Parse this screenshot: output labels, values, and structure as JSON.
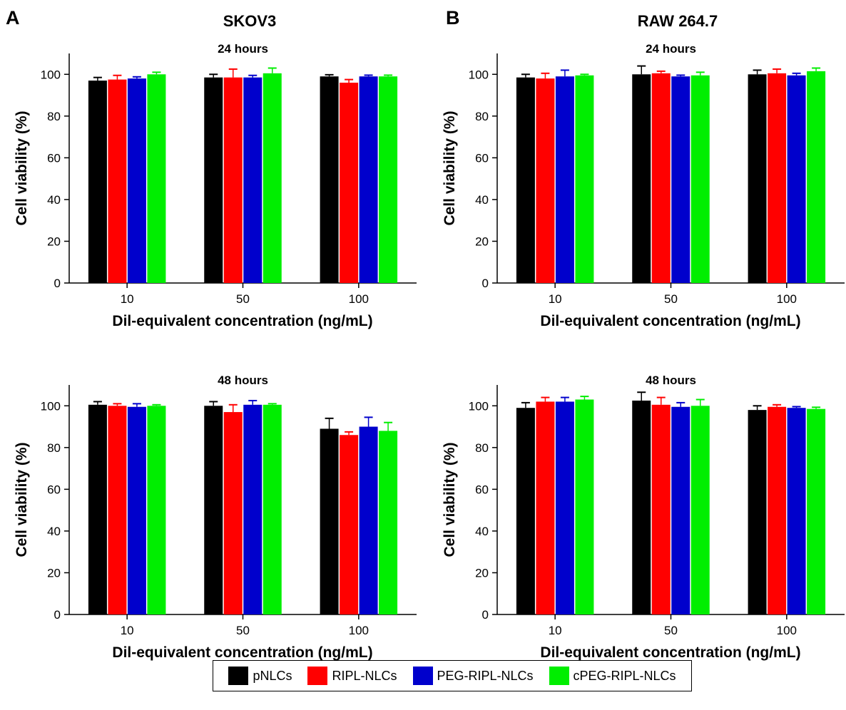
{
  "figure": {
    "panels": [
      {
        "letter": "A",
        "title": "SKOV3"
      },
      {
        "letter": "B",
        "title": "RAW 264.7"
      }
    ]
  },
  "legend": [
    {
      "name": "pNLCs",
      "color": "#000000"
    },
    {
      "name": "RIPL-NLCs",
      "color": "#ff0000"
    },
    {
      "name": "PEG-RIPL-NLCs",
      "color": "#0000cc"
    },
    {
      "name": "cPEG-RIPL-NLCs",
      "color": "#00ee00"
    }
  ],
  "chart_data": [
    {
      "type": "bar",
      "panel": "A",
      "title": "24 hours",
      "xlabel": "Dil-equivalent concentration (ng/mL)",
      "ylabel": "Cell viability (%)",
      "categories": [
        "10",
        "50",
        "100"
      ],
      "ylim": [
        0,
        110
      ],
      "yticks": [
        "0",
        "20",
        "40",
        "60",
        "80",
        "100"
      ],
      "series": [
        {
          "name": "pNLCs",
          "color": "#000000",
          "values": [
            97,
            98.5,
            99
          ],
          "errors": [
            1.5,
            1.5,
            0.8
          ]
        },
        {
          "name": "RIPL-NLCs",
          "color": "#ff0000",
          "values": [
            97.5,
            98.5,
            96
          ],
          "errors": [
            2,
            4,
            1.5
          ]
        },
        {
          "name": "PEG-RIPL-NLCs",
          "color": "#0000cc",
          "values": [
            98,
            98.5,
            99
          ],
          "errors": [
            0.8,
            1,
            0.6
          ]
        },
        {
          "name": "cPEG-RIPL-NLCs",
          "color": "#00ee00",
          "values": [
            100,
            100.5,
            99
          ],
          "errors": [
            1,
            2.5,
            0.6
          ]
        }
      ]
    },
    {
      "type": "bar",
      "panel": "B",
      "title": "24 hours",
      "xlabel": "Dil-equivalent concentration (ng/mL)",
      "ylabel": "Cell viability (%)",
      "categories": [
        "10",
        "50",
        "100"
      ],
      "ylim": [
        0,
        110
      ],
      "yticks": [
        "0",
        "20",
        "40",
        "60",
        "80",
        "100"
      ],
      "series": [
        {
          "name": "pNLCs",
          "color": "#000000",
          "values": [
            98.5,
            100,
            100
          ],
          "errors": [
            1.5,
            4,
            2
          ]
        },
        {
          "name": "RIPL-NLCs",
          "color": "#ff0000",
          "values": [
            98,
            100.5,
            100.5
          ],
          "errors": [
            2.5,
            1,
            2
          ]
        },
        {
          "name": "PEG-RIPL-NLCs",
          "color": "#0000cc",
          "values": [
            99,
            99,
            99.5
          ],
          "errors": [
            3,
            0.6,
            1
          ]
        },
        {
          "name": "cPEG-RIPL-NLCs",
          "color": "#00ee00",
          "values": [
            99.5,
            99.5,
            101.5
          ],
          "errors": [
            0.5,
            1.5,
            1.5
          ]
        }
      ]
    },
    {
      "type": "bar",
      "panel": "A",
      "title": "48 hours",
      "xlabel": "Dil-equivalent concentration (ng/mL)",
      "ylabel": "Cell viability (%)",
      "categories": [
        "10",
        "50",
        "100"
      ],
      "ylim": [
        0,
        110
      ],
      "yticks": [
        "0",
        "20",
        "40",
        "60",
        "80",
        "100"
      ],
      "series": [
        {
          "name": "pNLCs",
          "color": "#000000",
          "values": [
            100.5,
            100,
            89
          ],
          "errors": [
            1.5,
            2,
            5
          ]
        },
        {
          "name": "RIPL-NLCs",
          "color": "#ff0000",
          "values": [
            100,
            97,
            86
          ],
          "errors": [
            1,
            3.5,
            1.5
          ]
        },
        {
          "name": "PEG-RIPL-NLCs",
          "color": "#0000cc",
          "values": [
            99.5,
            100.5,
            90
          ],
          "errors": [
            1.5,
            2,
            4.5
          ]
        },
        {
          "name": "cPEG-RIPL-NLCs",
          "color": "#00ee00",
          "values": [
            100,
            100.5,
            88
          ],
          "errors": [
            0.5,
            0.5,
            4
          ]
        }
      ]
    },
    {
      "type": "bar",
      "panel": "B",
      "title": "48 hours",
      "xlabel": "Dil-equivalent concentration (ng/mL)",
      "ylabel": "Cell viability (%)",
      "categories": [
        "10",
        "50",
        "100"
      ],
      "ylim": [
        0,
        110
      ],
      "yticks": [
        "0",
        "20",
        "40",
        "60",
        "80",
        "100"
      ],
      "series": [
        {
          "name": "pNLCs",
          "color": "#000000",
          "values": [
            99,
            102.5,
            98
          ],
          "errors": [
            2.5,
            4,
            2
          ]
        },
        {
          "name": "RIPL-NLCs",
          "color": "#ff0000",
          "values": [
            102,
            100.5,
            99.5
          ],
          "errors": [
            2,
            3.5,
            1
          ]
        },
        {
          "name": "PEG-RIPL-NLCs",
          "color": "#0000cc",
          "values": [
            102,
            99.5,
            99
          ],
          "errors": [
            2,
            2,
            0.6
          ]
        },
        {
          "name": "cPEG-RIPL-NLCs",
          "color": "#00ee00",
          "values": [
            103,
            100,
            98.5
          ],
          "errors": [
            1.5,
            3,
            0.8
          ]
        }
      ]
    }
  ]
}
